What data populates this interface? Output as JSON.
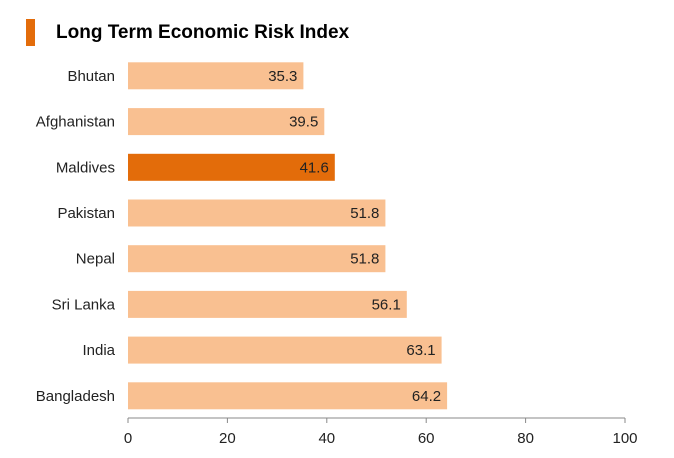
{
  "title": "Long Term Economic Risk Index",
  "colors": {
    "accent": "#E36C0A",
    "bar": "#F9C091",
    "highlight": "#E36C0A",
    "axis": "#888888",
    "text": "#222222"
  },
  "chart_data": {
    "type": "bar",
    "orientation": "horizontal",
    "title": "Long Term Economic Risk Index",
    "categories": [
      "Bhutan",
      "Afghanistan",
      "Maldives",
      "Pakistan",
      "Nepal",
      "Sri Lanka",
      "India",
      "Bangladesh"
    ],
    "values": [
      35.3,
      39.5,
      41.6,
      51.8,
      51.8,
      56.1,
      63.1,
      64.2
    ],
    "value_labels": [
      "35.3",
      "39.5",
      "41.6",
      "51.8",
      "51.8",
      "56.1",
      "63.1",
      "64.2"
    ],
    "highlighted_category": "Maldives",
    "xlim": [
      0,
      100
    ],
    "xticks": [
      0,
      20,
      40,
      60,
      80,
      100
    ],
    "xlabel": "",
    "ylabel": "",
    "grid": false,
    "legend": "none"
  }
}
